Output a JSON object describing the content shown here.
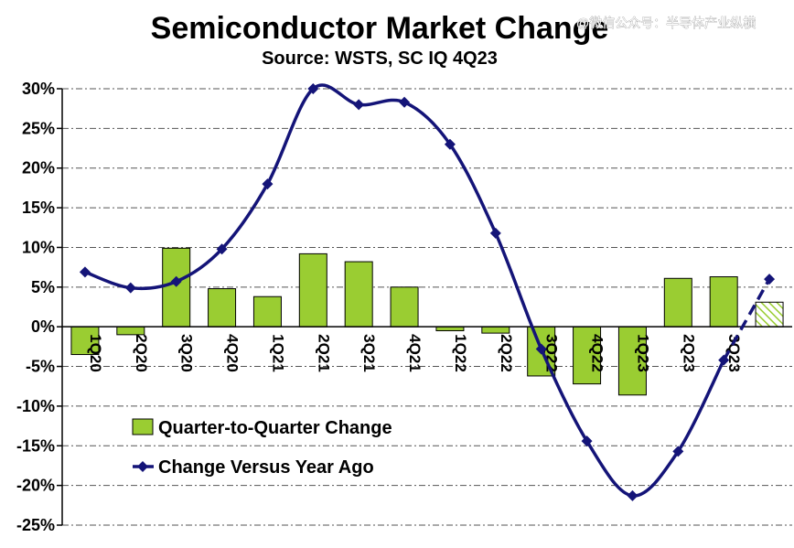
{
  "chart_data": {
    "type": "bar",
    "title": "Semiconductor Market Change",
    "subtitle": "Source: WSTS, SC IQ 4Q23",
    "watermark": "@微信公众号：半导体产业纵横",
    "categories": [
      "1Q20",
      "2Q20",
      "3Q20",
      "4Q20",
      "1Q21",
      "2Q21",
      "3Q21",
      "4Q21",
      "1Q22",
      "2Q22",
      "3Q22",
      "4Q22",
      "1Q23",
      "2Q23",
      "3Q23",
      ""
    ],
    "ylim": [
      -25,
      30
    ],
    "yticks": [
      "30%",
      "25%",
      "20%",
      "15%",
      "10%",
      "5%",
      "0%",
      "-5%",
      "-10%",
      "-15%",
      "-20%",
      "-25%"
    ],
    "grid": true,
    "legend_position": "lower-left",
    "series": [
      {
        "name": "Quarter-to-Quarter Change",
        "type": "bar",
        "values": [
          -3.5,
          -1.0,
          9.9,
          4.8,
          3.8,
          9.2,
          8.2,
          5.0,
          -0.5,
          -0.8,
          -6.2,
          -7.2,
          -8.6,
          6.1,
          6.3,
          3.1
        ],
        "color": "#9acd32",
        "forecast_index": 15
      },
      {
        "name": "Change Versus Year Ago",
        "type": "line",
        "values": [
          6.9,
          4.9,
          5.7,
          9.8,
          18.0,
          30.0,
          28.0,
          28.3,
          23.0,
          11.8,
          -2.8,
          -14.4,
          -21.3,
          -15.7,
          -4.2,
          6.0
        ],
        "color": "#141478",
        "forecast_from_index": 14
      }
    ]
  }
}
